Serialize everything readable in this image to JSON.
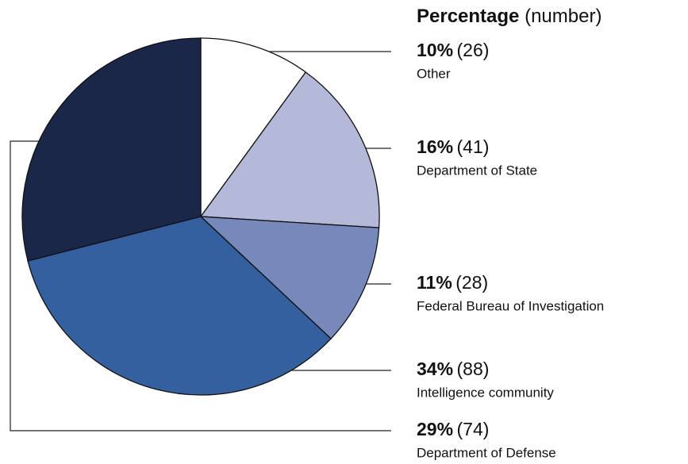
{
  "chart_data": {
    "type": "pie",
    "legend_title": "Percentage",
    "legend_subtitle": "(number)",
    "categories": [
      "Other",
      "Department of State",
      "Federal Bureau of Investigation",
      "Intelligence community",
      "Department of Defense"
    ],
    "values": [
      10,
      16,
      11,
      34,
      29
    ],
    "value_labels": [
      "10%",
      "16%",
      "11%",
      "34%",
      "29%"
    ],
    "counts": [
      26,
      41,
      28,
      88,
      74
    ],
    "count_labels": [
      "(26)",
      "(41)",
      "(28)",
      "(88)",
      "(74)"
    ],
    "colors": [
      "#ffffff",
      "#b4b9da",
      "#7788bb",
      "#3560a0",
      "#1a2748"
    ]
  }
}
